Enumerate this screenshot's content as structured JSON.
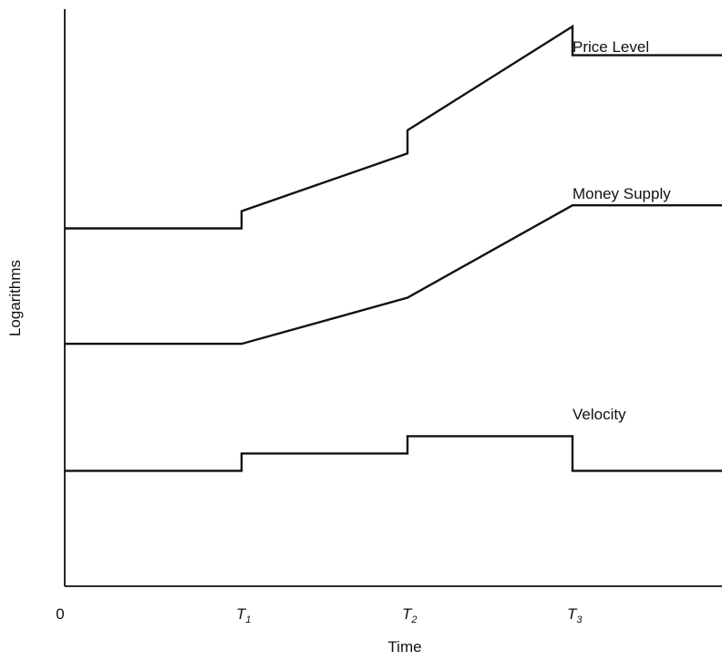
{
  "chart_data": {
    "type": "line",
    "title": "",
    "xlabel": "Time",
    "ylabel": "Logarithms",
    "x_ticks": [
      {
        "value": 0,
        "label": "0",
        "subscript": ""
      },
      {
        "value": 1,
        "label": "T",
        "subscript": "1"
      },
      {
        "value": 2,
        "label": "T",
        "subscript": "2"
      },
      {
        "value": 3,
        "label": "T",
        "subscript": "3"
      }
    ],
    "xlim": [
      0,
      4
    ],
    "ylim": [
      0,
      10
    ],
    "series": [
      {
        "name": "Price Level",
        "points": [
          [
            0,
            6.2
          ],
          [
            1,
            6.2
          ],
          [
            1,
            6.5
          ],
          [
            2,
            7.5
          ],
          [
            2,
            7.9
          ],
          [
            3,
            9.7
          ],
          [
            3,
            9.2
          ],
          [
            4,
            9.2
          ]
        ]
      },
      {
        "name": "Money Supply",
        "points": [
          [
            0,
            4.2
          ],
          [
            1,
            4.2
          ],
          [
            2,
            5.0
          ],
          [
            3,
            6.6
          ],
          [
            4,
            6.6
          ]
        ]
      },
      {
        "name": "Velocity",
        "points": [
          [
            0,
            2.0
          ],
          [
            1,
            2.0
          ],
          [
            1,
            2.3
          ],
          [
            2,
            2.3
          ],
          [
            2,
            2.6
          ],
          [
            3,
            2.6
          ],
          [
            3,
            2.0
          ],
          [
            4,
            2.0
          ]
        ]
      }
    ],
    "grid": false,
    "legend": "inline labels"
  }
}
